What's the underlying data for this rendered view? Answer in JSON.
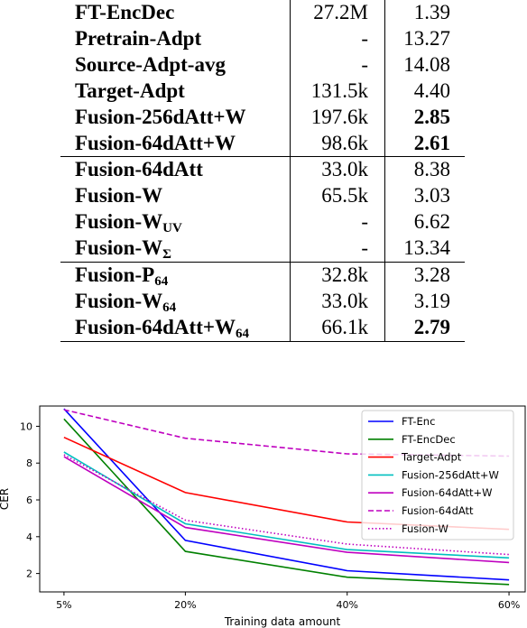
{
  "table": {
    "rows": [
      {
        "method": "FT-EncDec",
        "sub": "",
        "params": "27.2M",
        "cer": "1.39",
        "bold_cer": false,
        "group_start": false
      },
      {
        "method": "Pretrain-Adpt",
        "sub": "",
        "params": "-",
        "cer": "13.27",
        "bold_cer": false,
        "group_start": false
      },
      {
        "method": "Source-Adpt-avg",
        "sub": "",
        "params": "-",
        "cer": "14.08",
        "bold_cer": false,
        "group_start": false
      },
      {
        "method": "Target-Adpt",
        "sub": "",
        "params": "131.5k",
        "cer": "4.40",
        "bold_cer": false,
        "group_start": false
      },
      {
        "method": "Fusion-256dAtt+W",
        "sub": "",
        "params": "197.6k",
        "cer": "2.85",
        "bold_cer": true,
        "group_start": false
      },
      {
        "method": "Fusion-64dAtt+W",
        "sub": "",
        "params": "98.6k",
        "cer": "2.61",
        "bold_cer": true,
        "group_start": false
      },
      {
        "method": "Fusion-64dAtt",
        "sub": "",
        "params": "33.0k",
        "cer": "8.38",
        "bold_cer": false,
        "group_start": true
      },
      {
        "method": "Fusion-W",
        "sub": "",
        "params": "65.5k",
        "cer": "3.03",
        "bold_cer": false,
        "group_start": false
      },
      {
        "method": "Fusion-W",
        "sub": "UV",
        "params": "-",
        "cer": "6.62",
        "bold_cer": false,
        "group_start": false
      },
      {
        "method": "Fusion-W",
        "sub": "Σ",
        "params": "-",
        "cer": "13.34",
        "bold_cer": false,
        "group_start": false
      },
      {
        "method": "Fusion-P",
        "sub": "64",
        "params": "32.8k",
        "cer": "3.28",
        "bold_cer": false,
        "group_start": true
      },
      {
        "method": "Fusion-W",
        "sub": "64",
        "params": "33.0k",
        "cer": "3.19",
        "bold_cer": false,
        "group_start": false
      },
      {
        "method": "Fusion-64dAtt+W",
        "sub": "64",
        "params": "66.1k",
        "cer": "2.79",
        "bold_cer": true,
        "group_start": false
      }
    ]
  },
  "chart_data": {
    "type": "line",
    "xlabel": "Training data amount",
    "ylabel": "CER",
    "categories": [
      "5%",
      "20%",
      "40%",
      "60%"
    ],
    "x": [
      5,
      20,
      40,
      60
    ],
    "xlim": [
      2,
      62
    ],
    "ylim": [
      1.0,
      11.1
    ],
    "yticks": [
      2,
      4,
      6,
      8,
      10
    ],
    "grid": false,
    "legend_position": "top-right",
    "series": [
      {
        "name": "FT-Enc",
        "color": "#0000ff",
        "dash": "solid",
        "points": [
          [
            5,
            10.95
          ],
          [
            20,
            3.8
          ],
          [
            40,
            2.15
          ],
          [
            60,
            1.65
          ]
        ]
      },
      {
        "name": "FT-EncDec",
        "color": "#008000",
        "dash": "solid",
        "points": [
          [
            5,
            10.4
          ],
          [
            20,
            3.2
          ],
          [
            40,
            1.8
          ],
          [
            60,
            1.4
          ]
        ]
      },
      {
        "name": "Target-Adpt",
        "color": "#ff0000",
        "dash": "solid",
        "points": [
          [
            5,
            9.4
          ],
          [
            20,
            6.4
          ],
          [
            40,
            4.8
          ],
          [
            60,
            4.4
          ]
        ]
      },
      {
        "name": "Fusion-256dAtt+W",
        "color": "#00bfbf",
        "dash": "solid",
        "points": [
          [
            5,
            8.6
          ],
          [
            20,
            4.7
          ],
          [
            40,
            3.3
          ],
          [
            60,
            2.85
          ]
        ]
      },
      {
        "name": "Fusion-64dAtt+W",
        "color": "#bf00bf",
        "dash": "solid",
        "points": [
          [
            5,
            8.35
          ],
          [
            20,
            4.5
          ],
          [
            40,
            3.15
          ],
          [
            60,
            2.6
          ]
        ]
      },
      {
        "name": "Fusion-64dAtt",
        "color": "#bf00bf",
        "dash": "dashed",
        "points": [
          [
            5,
            10.9
          ],
          [
            20,
            9.35
          ],
          [
            40,
            8.5
          ],
          [
            60,
            8.38
          ]
        ]
      },
      {
        "name": "Fusion-W",
        "color": "#bf00bf",
        "dash": "dotted",
        "points": [
          [
            5,
            8.45
          ],
          [
            20,
            4.9
          ],
          [
            40,
            3.6
          ],
          [
            60,
            3.03
          ]
        ]
      }
    ]
  }
}
